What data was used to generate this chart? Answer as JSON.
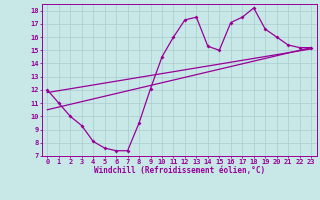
{
  "title": "",
  "xlabel": "Windchill (Refroidissement éolien,°C)",
  "ylabel": "",
  "bg_color": "#c8e8e8",
  "line_color": "#990099",
  "grid_color": "#aacccc",
  "xlim": [
    -0.5,
    23.5
  ],
  "ylim": [
    7,
    18.5
  ],
  "xticks": [
    0,
    1,
    2,
    3,
    4,
    5,
    6,
    7,
    8,
    9,
    10,
    11,
    12,
    13,
    14,
    15,
    16,
    17,
    18,
    19,
    20,
    21,
    22,
    23
  ],
  "yticks": [
    7,
    8,
    9,
    10,
    11,
    12,
    13,
    14,
    15,
    16,
    17,
    18
  ],
  "data_x": [
    0,
    1,
    2,
    3,
    4,
    5,
    6,
    7,
    8,
    9,
    10,
    11,
    12,
    13,
    14,
    15,
    16,
    17,
    18,
    19,
    20,
    21,
    22,
    23
  ],
  "data_y": [
    12,
    11,
    10,
    9.3,
    8.1,
    7.6,
    7.4,
    7.4,
    9.5,
    12.1,
    14.5,
    16.0,
    17.3,
    17.5,
    15.3,
    15.0,
    17.1,
    17.5,
    18.2,
    16.6,
    16.0,
    15.4,
    15.2,
    15.2
  ],
  "reg_line1_x": [
    0,
    23
  ],
  "reg_line1_y": [
    10.5,
    15.2
  ],
  "reg_line2_x": [
    0,
    23
  ],
  "reg_line2_y": [
    11.8,
    15.1
  ],
  "xlabel_fontsize": 5.5,
  "tick_fontsize": 5.0
}
